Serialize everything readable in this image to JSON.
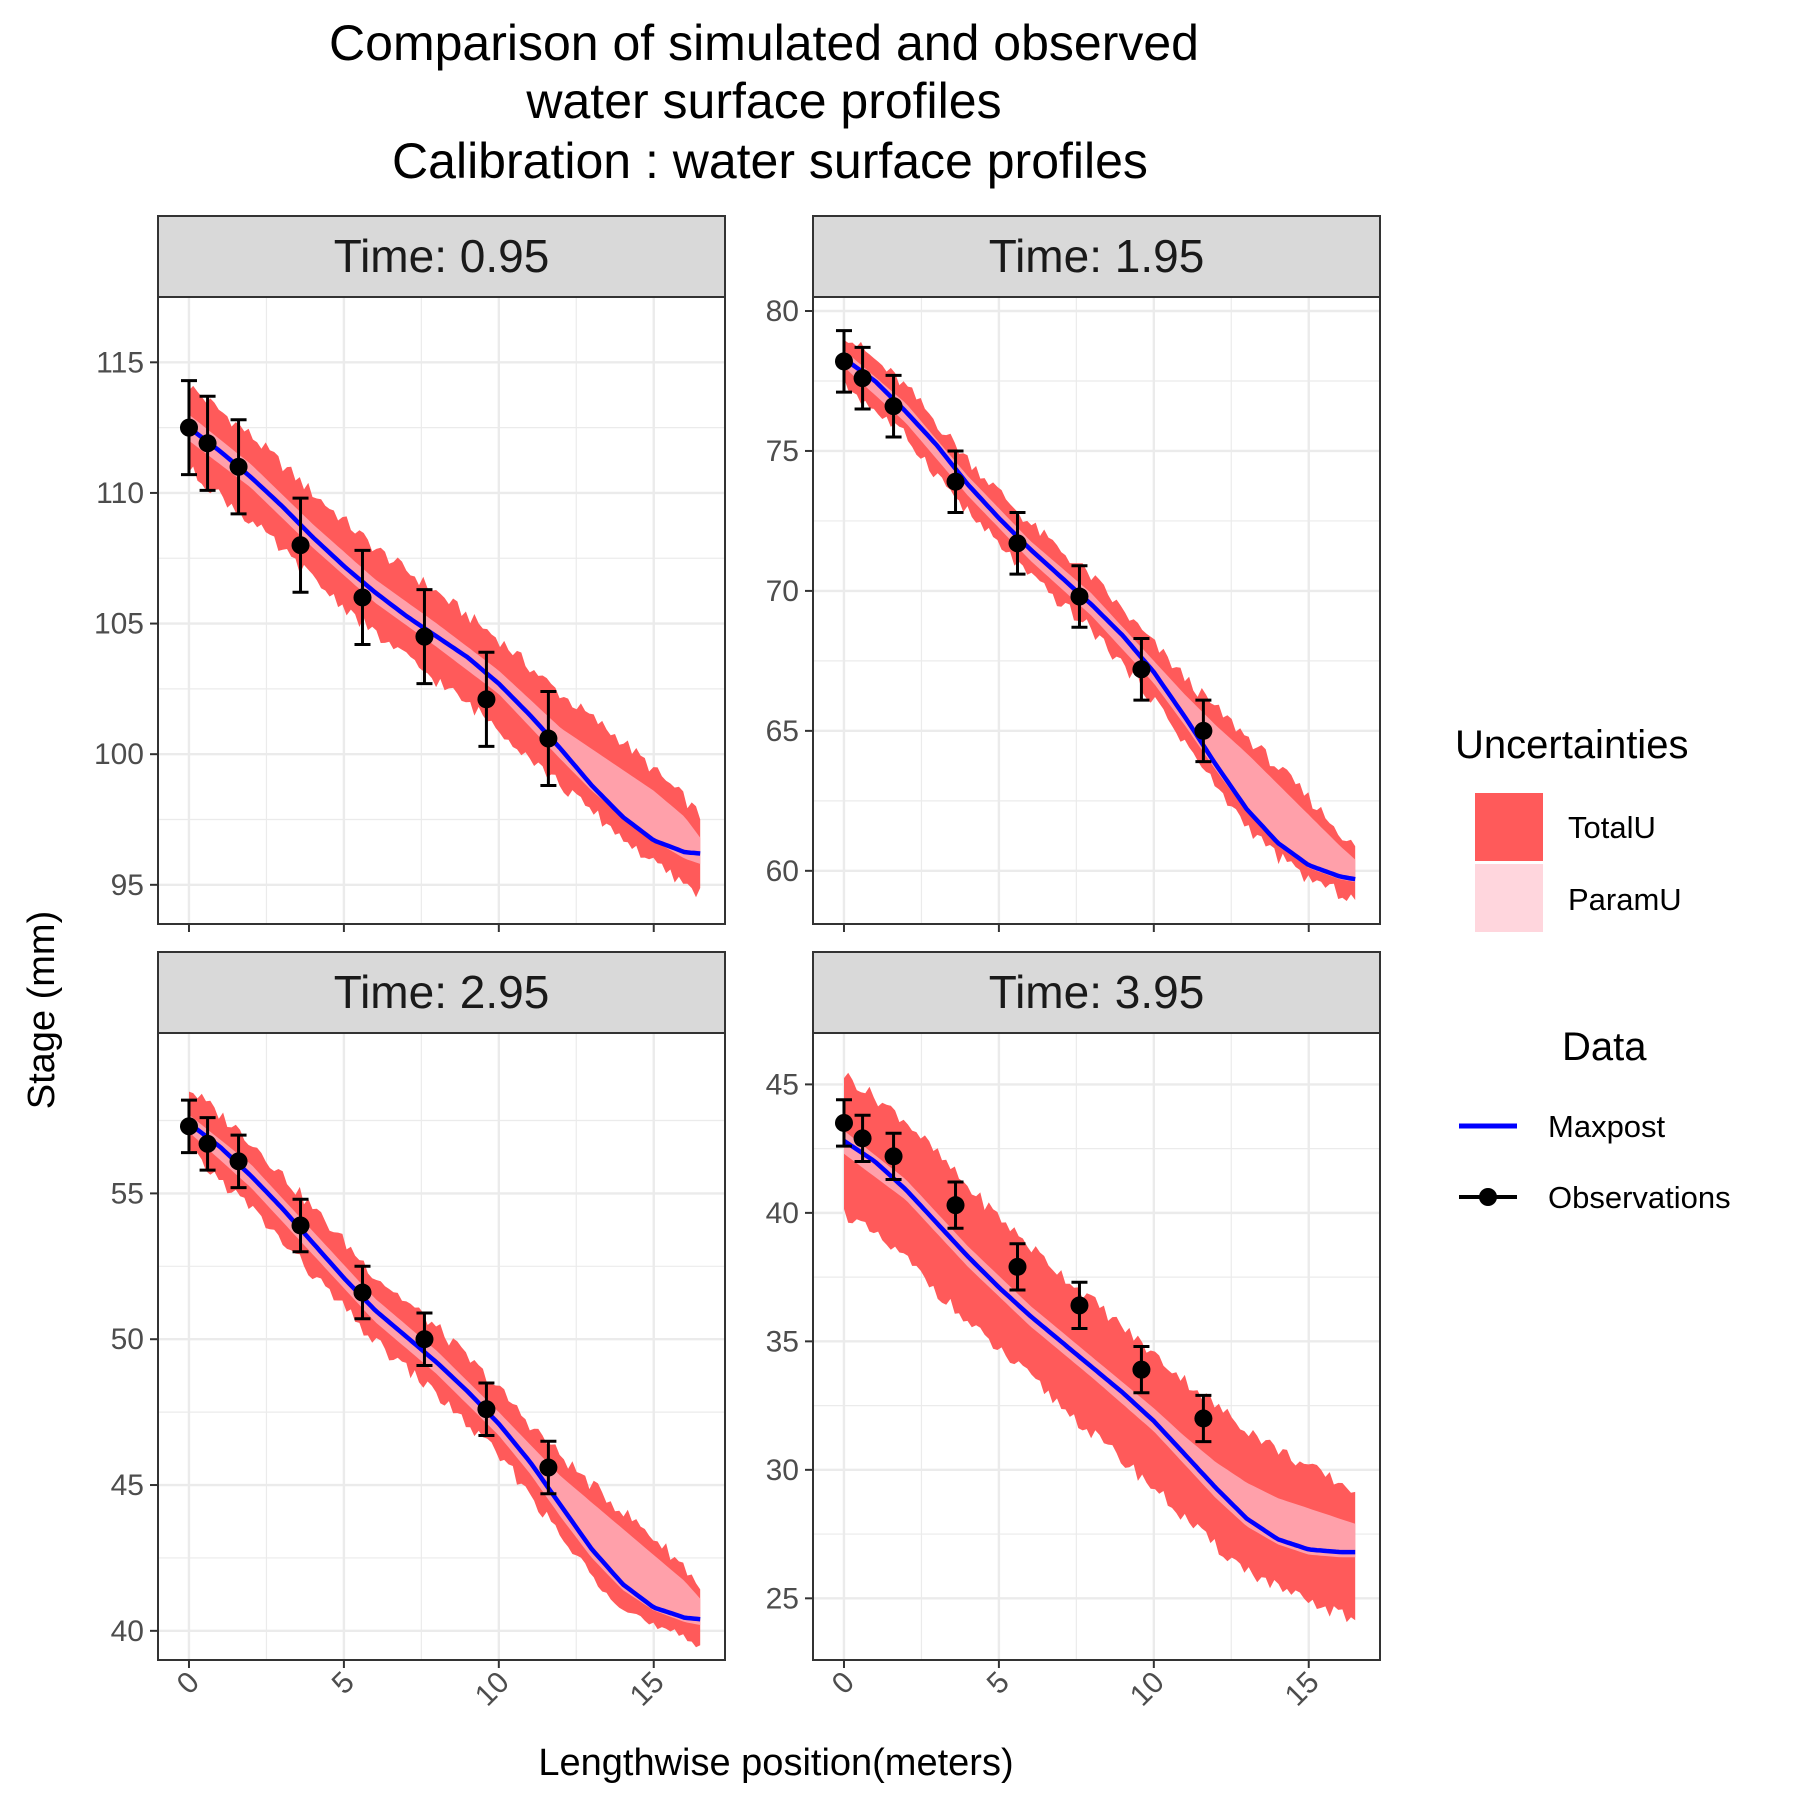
{
  "chart_data": {
    "type": "line",
    "title_lines": [
      "Comparison of simulated and observed",
      "water surface profiles",
      "Calibration : water surface profiles"
    ],
    "xlabel": "Lengthwise position(meters)",
    "ylabel": "Stage (mm)",
    "xlim": [
      -1,
      17.3
    ],
    "x_ticks": [
      "0",
      "5",
      "10",
      "15"
    ],
    "x_tick_values": [
      0,
      5,
      10,
      15
    ],
    "grid": true,
    "legend_position": "right",
    "colors": {
      "maxpost": "#0000ff",
      "totalu": "#ff5a5a",
      "paramu": "#ffa0aa",
      "observations": "#000000",
      "strip_bg": "#d9d9d9",
      "grid": "#ebebeb"
    },
    "legends": {
      "uncertainties": {
        "title": "Uncertainties",
        "items": [
          {
            "label": "TotalU",
            "color": "#ff5a5a"
          },
          {
            "label": "ParamU",
            "color": "#ffd6dd"
          }
        ]
      },
      "data": {
        "title": "Data",
        "items": [
          {
            "label": "Maxpost",
            "color": "#0000ff"
          },
          {
            "label": "Observations",
            "color": "#000000"
          }
        ]
      }
    },
    "panels": [
      {
        "strip": "Time:  0.95",
        "ylim": [
          93.5,
          117.5
        ],
        "y_ticks": [
          "95",
          "100",
          "105",
          "110",
          "115"
        ],
        "y_tick_values": [
          95,
          100,
          105,
          110,
          115
        ],
        "maxpost": {
          "x": [
            0,
            1,
            2,
            3,
            4,
            5,
            6,
            7,
            8,
            9,
            10,
            11,
            12,
            13,
            14,
            15,
            16,
            16.5
          ],
          "y": [
            112.5,
            111.6,
            110.6,
            109.5,
            108.3,
            107.2,
            106.2,
            105.3,
            104.5,
            103.7,
            102.7,
            101.5,
            100.2,
            98.8,
            97.6,
            96.7,
            96.25,
            96.2
          ]
        },
        "paramu": {
          "x": [
            0,
            2,
            4,
            6,
            8,
            10,
            12,
            13,
            14,
            15,
            16,
            16.5
          ],
          "lower": [
            112.0,
            110.2,
            107.9,
            105.8,
            104.1,
            102.3,
            99.8,
            98.6,
            97.6,
            96.7,
            96.0,
            95.8
          ],
          "upper": [
            113.0,
            111.1,
            108.8,
            106.7,
            105.0,
            103.2,
            101.0,
            100.2,
            99.4,
            98.6,
            97.6,
            96.8
          ]
        },
        "totalu": {
          "x": [
            0,
            2,
            4,
            6,
            8,
            10,
            12,
            13,
            14,
            15,
            16,
            16.5
          ],
          "lower": [
            110.9,
            108.9,
            106.7,
            104.6,
            102.8,
            101.0,
            98.8,
            97.8,
            96.8,
            95.8,
            95.0,
            94.7
          ],
          "upper": [
            114.1,
            112.2,
            110.0,
            107.9,
            106.2,
            104.4,
            102.3,
            101.4,
            100.5,
            99.4,
            98.3,
            97.6
          ]
        },
        "observations": {
          "x": [
            0,
            0.6,
            1.6,
            3.6,
            5.6,
            7.6,
            9.6,
            11.6
          ],
          "y": [
            112.5,
            111.9,
            111.0,
            108.0,
            106.0,
            104.5,
            102.1,
            100.6
          ],
          "err": [
            1.8,
            1.8,
            1.8,
            1.8,
            1.8,
            1.8,
            1.8,
            1.8
          ]
        }
      },
      {
        "strip": "Time:  1.95",
        "ylim": [
          58.1,
          80.5
        ],
        "y_ticks": [
          "60",
          "65",
          "70",
          "75",
          "80"
        ],
        "y_tick_values": [
          60,
          65,
          70,
          75,
          80
        ],
        "maxpost": {
          "x": [
            0,
            1,
            2,
            3,
            4,
            5,
            6,
            7,
            8,
            9,
            10,
            11,
            12,
            13,
            14,
            15,
            16,
            16.5
          ],
          "y": [
            78.3,
            77.5,
            76.4,
            75.2,
            73.8,
            72.6,
            71.5,
            70.5,
            69.5,
            68.4,
            67.1,
            65.5,
            63.8,
            62.2,
            61.0,
            60.2,
            59.8,
            59.7
          ]
        },
        "paramu": {
          "x": [
            0,
            2,
            4,
            6,
            8,
            10,
            11,
            12,
            13,
            14,
            15,
            16,
            16.5
          ],
          "lower": [
            78.0,
            76.0,
            73.4,
            71.1,
            69.1,
            66.7,
            65.2,
            63.6,
            62.1,
            60.9,
            60.1,
            59.7,
            59.6
          ],
          "upper": [
            78.6,
            76.7,
            74.1,
            71.8,
            69.9,
            67.5,
            66.3,
            65.2,
            64.2,
            63.1,
            62.0,
            60.9,
            60.4
          ]
        },
        "totalu": {
          "x": [
            0,
            2,
            4,
            6,
            8,
            10,
            11,
            12,
            13,
            14,
            15,
            16,
            16.5
          ],
          "lower": [
            77.4,
            75.5,
            72.8,
            70.5,
            68.6,
            66.1,
            64.6,
            63.0,
            61.6,
            60.5,
            59.7,
            59.2,
            59.0
          ],
          "upper": [
            79.2,
            77.3,
            74.7,
            72.4,
            70.5,
            68.1,
            66.9,
            65.8,
            64.8,
            63.7,
            62.6,
            61.4,
            60.8
          ]
        },
        "observations": {
          "x": [
            0,
            0.6,
            1.6,
            3.6,
            5.6,
            7.6,
            9.6,
            11.6
          ],
          "y": [
            78.2,
            77.6,
            76.6,
            73.9,
            71.7,
            69.8,
            67.2,
            65.0
          ],
          "err": [
            1.1,
            1.1,
            1.1,
            1.1,
            1.1,
            1.1,
            1.1,
            1.1
          ]
        }
      },
      {
        "strip": "Time:  2.95",
        "ylim": [
          39.0,
          60.5
        ],
        "y_ticks": [
          "40",
          "45",
          "50",
          "55"
        ],
        "y_tick_values": [
          40,
          45,
          50,
          55
        ],
        "maxpost": {
          "x": [
            0,
            1,
            2,
            3,
            4,
            5,
            6,
            7,
            8,
            9,
            10,
            11,
            12,
            13,
            14,
            15,
            16,
            16.5
          ],
          "y": [
            57.4,
            56.6,
            55.6,
            54.5,
            53.3,
            52.1,
            51.0,
            50.1,
            49.2,
            48.2,
            47.1,
            45.8,
            44.3,
            42.8,
            41.6,
            40.8,
            40.45,
            40.4
          ]
        },
        "paramu": {
          "x": [
            0,
            2,
            4,
            6,
            8,
            10,
            11,
            12,
            13,
            14,
            15,
            16,
            16.5
          ],
          "lower": [
            57.1,
            55.2,
            52.9,
            50.6,
            48.8,
            46.7,
            45.4,
            43.9,
            42.5,
            41.4,
            40.7,
            40.3,
            40.2
          ],
          "upper": [
            57.7,
            56.0,
            53.7,
            51.4,
            49.6,
            47.5,
            46.4,
            45.3,
            44.4,
            43.5,
            42.6,
            41.7,
            41.1
          ]
        },
        "totalu": {
          "x": [
            0,
            2,
            4,
            6,
            8,
            10,
            11,
            12,
            13,
            14,
            15,
            16,
            16.5
          ],
          "lower": [
            56.4,
            54.5,
            52.2,
            49.9,
            48.1,
            46.0,
            44.7,
            43.2,
            41.9,
            40.9,
            40.1,
            39.7,
            39.5
          ],
          "upper": [
            58.6,
            56.8,
            54.5,
            52.2,
            50.4,
            48.3,
            47.1,
            46.0,
            45.0,
            44.1,
            43.2,
            42.2,
            41.5
          ]
        },
        "observations": {
          "x": [
            0,
            0.6,
            1.6,
            3.6,
            5.6,
            7.6,
            9.6,
            11.6
          ],
          "y": [
            57.3,
            56.7,
            56.1,
            53.9,
            51.6,
            50.0,
            47.6,
            45.6
          ],
          "err": [
            0.9,
            0.9,
            0.9,
            0.9,
            0.9,
            0.9,
            0.9,
            0.9
          ]
        }
      },
      {
        "strip": "Time:  3.95",
        "ylim": [
          22.6,
          47.0
        ],
        "y_ticks": [
          "25",
          "30",
          "35",
          "40",
          "45"
        ],
        "y_tick_values": [
          25,
          30,
          35,
          40,
          45
        ],
        "maxpost": {
          "x": [
            0,
            1,
            2,
            3,
            4,
            5,
            6,
            7,
            8,
            9,
            10,
            11,
            12,
            13,
            14,
            15,
            16,
            16.5
          ],
          "y": [
            42.8,
            42.0,
            40.9,
            39.6,
            38.3,
            37.1,
            36.0,
            35.0,
            34.0,
            33.0,
            31.9,
            30.6,
            29.3,
            28.1,
            27.3,
            26.9,
            26.8,
            26.8
          ]
        },
        "paramu": {
          "x": [
            0,
            2,
            4,
            6,
            8,
            10,
            11,
            12,
            13,
            14,
            15,
            16,
            16.5
          ],
          "lower": [
            42.3,
            40.5,
            37.9,
            35.6,
            33.6,
            31.5,
            30.2,
            28.9,
            27.8,
            27.1,
            26.7,
            26.6,
            26.6
          ],
          "upper": [
            43.2,
            41.3,
            38.7,
            36.4,
            34.4,
            32.4,
            31.3,
            30.3,
            29.5,
            28.9,
            28.5,
            28.1,
            27.9
          ]
        },
        "totalu": {
          "x": [
            0,
            2,
            4,
            6,
            8,
            10,
            11,
            12,
            13,
            14,
            15,
            16,
            16.5
          ],
          "lower": [
            40.0,
            38.2,
            35.7,
            33.6,
            31.4,
            29.3,
            28.1,
            27.0,
            26.1,
            25.4,
            24.8,
            24.4,
            24.1
          ],
          "upper": [
            45.4,
            43.6,
            41.0,
            38.7,
            36.6,
            34.5,
            33.5,
            32.5,
            31.6,
            30.8,
            30.1,
            29.5,
            29.2
          ]
        },
        "observations": {
          "x": [
            0,
            0.6,
            1.6,
            3.6,
            5.6,
            7.6,
            9.6,
            11.6
          ],
          "y": [
            43.5,
            42.9,
            42.2,
            40.3,
            37.9,
            36.4,
            33.9,
            32.0
          ],
          "err": [
            0.9,
            0.9,
            0.9,
            0.9,
            0.9,
            0.9,
            0.9,
            0.9
          ]
        }
      }
    ]
  }
}
